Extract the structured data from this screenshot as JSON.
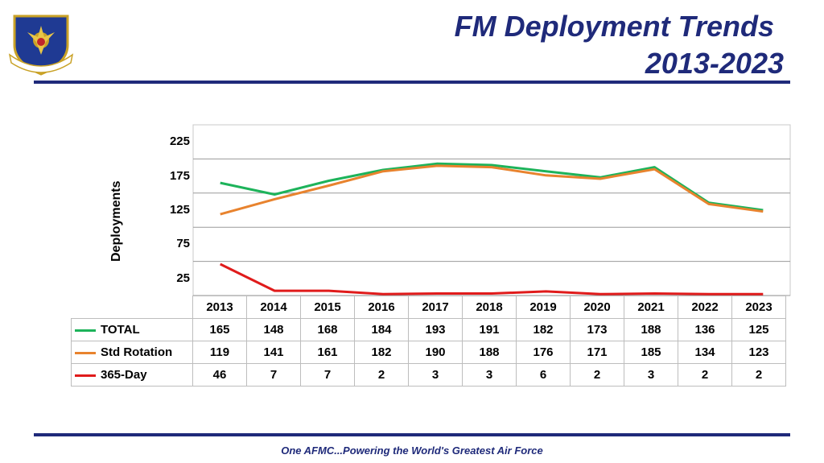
{
  "title_line1": "FM Deployment Trends",
  "title_line2": "2013-2023",
  "footer": "One AFMC...Powering the World's Greatest Air Force",
  "logo_text": "AIR FORCE MATERIEL COMMAND",
  "chart_data": {
    "type": "line",
    "ylabel": "Deployments",
    "yticks": [
      225,
      175,
      125,
      75,
      25
    ],
    "ylim": [
      0,
      250
    ],
    "grid": true,
    "legend_placement": "data-table",
    "categories": [
      "2013",
      "2014",
      "2015",
      "2016",
      "2017",
      "2018",
      "2019",
      "2020",
      "2021",
      "2022",
      "2023"
    ],
    "series": [
      {
        "name": "TOTAL",
        "color": "#1db35a",
        "values": [
          165,
          148,
          168,
          184,
          193,
          191,
          182,
          173,
          188,
          136,
          125
        ]
      },
      {
        "name": "Std Rotation",
        "color": "#e8832e",
        "values": [
          119,
          141,
          161,
          182,
          190,
          188,
          176,
          171,
          185,
          134,
          123
        ]
      },
      {
        "name": "365-Day",
        "color": "#e01b1b",
        "values": [
          46,
          7,
          7,
          2,
          3,
          3,
          6,
          2,
          3,
          2,
          2
        ]
      }
    ]
  }
}
